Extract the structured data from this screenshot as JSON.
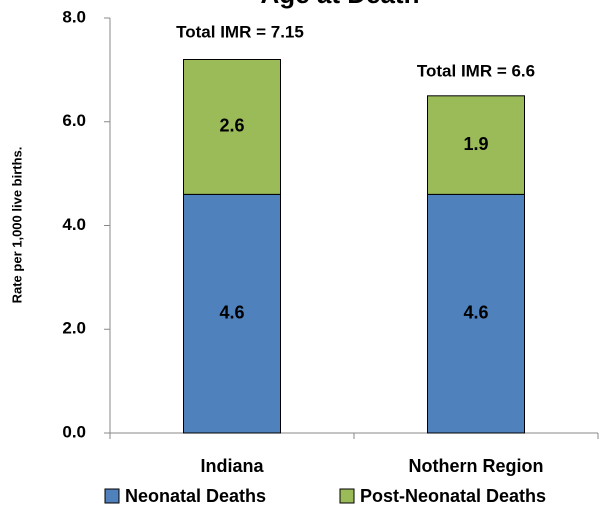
{
  "chart_data": {
    "type": "stacked_bar",
    "title": "Age at Death",
    "y_label": "Rate per 1,000 live births.",
    "categories": [
      "Indiana",
      "Nothern Region"
    ],
    "series": [
      {
        "name": "Neonatal Deaths",
        "color": "#4f81bd",
        "values": [
          4.6,
          4.6
        ]
      },
      {
        "name": "Post-Neonatal Deaths",
        "color": "#9bbb59",
        "values": [
          2.6,
          1.9
        ]
      }
    ],
    "annotations": [
      "Total IMR = 7.15",
      "Total IMR = 6.6"
    ],
    "ylim": [
      0,
      8
    ],
    "yticks": [
      {
        "value": 0,
        "label": "0.0"
      },
      {
        "value": 2,
        "label": "2.0"
      },
      {
        "value": 4,
        "label": "4.0"
      },
      {
        "value": 6,
        "label": "6.0"
      },
      {
        "value": 8,
        "label": "8.0"
      }
    ],
    "grid": false,
    "legend": "bottom"
  }
}
